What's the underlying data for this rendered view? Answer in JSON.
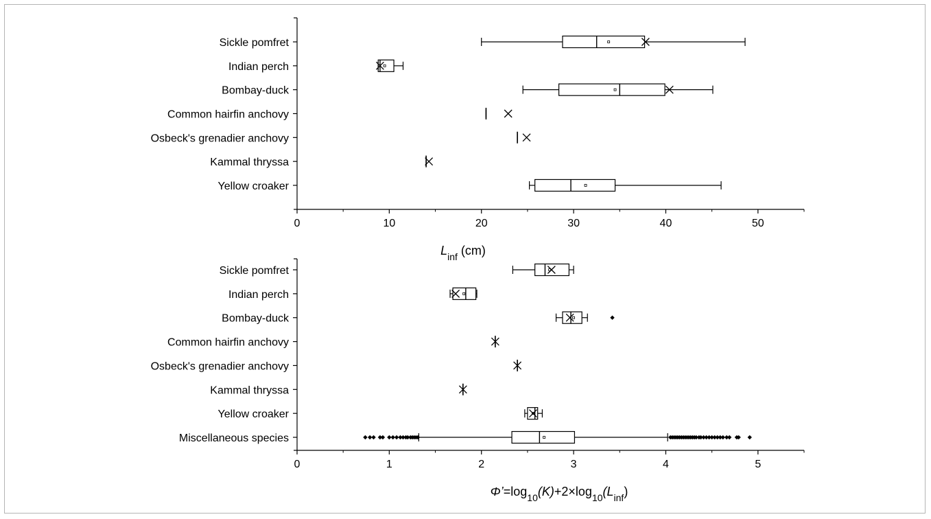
{
  "chart_data": [
    {
      "type": "box",
      "xlabel": {
        "base": "L",
        "sub": "inf",
        "tail": " (cm)"
      },
      "xlim": [
        0,
        55
      ],
      "xticks": [
        "0",
        "10",
        "20",
        "30",
        "40",
        "50"
      ],
      "xtick_values": [
        0,
        10,
        20,
        30,
        40,
        50
      ],
      "grid": false,
      "categories": [
        "Sickle pomfret",
        "Indian perch",
        "Bombay-duck",
        "Common hairfin anchovy",
        "Osbeck's grenadier anchovy",
        "Kammal thryssa",
        "Yellow croaker"
      ],
      "boxes": [
        {
          "whisker_low": 20.0,
          "q1": 28.8,
          "median": 32.5,
          "q3": 37.7,
          "whisker_high": 48.6,
          "mean": 33.8,
          "cross": 37.8,
          "outliers": []
        },
        {
          "whisker_low": 8.8,
          "q1": 8.8,
          "median": 9.0,
          "q3": 10.5,
          "whisker_high": 11.5,
          "mean": 9.5,
          "cross": 9.0,
          "outliers": []
        },
        {
          "whisker_low": 24.5,
          "q1": 28.4,
          "median": 35.0,
          "q3": 39.9,
          "whisker_high": 45.1,
          "mean": 34.5,
          "cross": 40.4,
          "outliers": []
        },
        {
          "whisker_low": 20.5,
          "q1": 20.5,
          "median": 20.5,
          "q3": 20.5,
          "whisker_high": 20.5,
          "mean": 20.5,
          "cross": 22.9,
          "outliers": []
        },
        {
          "whisker_low": 23.9,
          "q1": 23.9,
          "median": 23.9,
          "q3": 23.9,
          "whisker_high": 23.9,
          "mean": 23.9,
          "cross": 24.9,
          "outliers": []
        },
        {
          "whisker_low": 14.0,
          "q1": 14.0,
          "median": 14.0,
          "q3": 14.0,
          "whisker_high": 14.0,
          "mean": 14.0,
          "cross": 14.3,
          "outliers": []
        },
        {
          "whisker_low": 25.2,
          "q1": 25.8,
          "median": 29.7,
          "q3": 34.5,
          "whisker_high": 46.0,
          "mean": 31.3,
          "cross": null,
          "outliers": []
        }
      ]
    },
    {
      "type": "box",
      "xlabel": {
        "phi": "Φ’",
        "eq": "=log",
        "sub1": "10",
        "k": "(K)",
        "plus": "+2×log",
        "sub2": "10",
        "lopen": "(L",
        "sub3": "inf",
        "rclose": ")"
      },
      "xlim": [
        0,
        5.5
      ],
      "xticks": [
        "0",
        "1",
        "2",
        "3",
        "4",
        "5"
      ],
      "xtick_values": [
        0,
        1,
        2,
        3,
        4,
        5
      ],
      "grid": false,
      "categories": [
        "Sickle pomfret",
        "Indian perch",
        "Bombay-duck",
        "Common hairfin anchovy",
        "Osbeck's grenadier anchovy",
        "Kammal thryssa",
        "Yellow croaker",
        "Miscellaneous species"
      ],
      "boxes": [
        {
          "whisker_low": 2.34,
          "q1": 2.58,
          "median": 2.69,
          "q3": 2.95,
          "whisker_high": 3.0,
          "mean": 2.74,
          "cross": 2.76,
          "outliers": []
        },
        {
          "whisker_low": 1.66,
          "q1": 1.69,
          "median": 1.83,
          "q3": 1.94,
          "whisker_high": 1.95,
          "mean": 1.81,
          "cross": 1.72,
          "outliers": []
        },
        {
          "whisker_low": 2.81,
          "q1": 2.88,
          "median": 2.97,
          "q3": 3.09,
          "whisker_high": 3.15,
          "mean": 3.0,
          "cross": 2.96,
          "outliers": [
            3.42
          ]
        },
        {
          "whisker_low": 2.15,
          "q1": 2.15,
          "median": 2.15,
          "q3": 2.15,
          "whisker_high": 2.15,
          "mean": 2.15,
          "cross": 2.15,
          "outliers": []
        },
        {
          "whisker_low": 2.39,
          "q1": 2.39,
          "median": 2.39,
          "q3": 2.39,
          "whisker_high": 2.39,
          "mean": 2.39,
          "cross": 2.39,
          "outliers": []
        },
        {
          "whisker_low": 1.8,
          "q1": 1.8,
          "median": 1.8,
          "q3": 1.8,
          "whisker_high": 1.8,
          "mean": 1.8,
          "cross": 1.8,
          "outliers": []
        },
        {
          "whisker_low": 2.47,
          "q1": 2.5,
          "median": 2.58,
          "q3": 2.61,
          "whisker_high": 2.66,
          "mean": 2.56,
          "cross": 2.56,
          "outliers": []
        },
        {
          "whisker_low": 1.32,
          "q1": 2.33,
          "median": 2.63,
          "q3": 3.01,
          "whisker_high": 4.02,
          "mean": 2.68,
          "cross": null,
          "outliers": [
            0.74,
            0.79,
            0.83,
            0.9,
            0.93,
            1.0,
            1.04,
            1.08,
            1.12,
            1.15,
            1.18,
            1.2,
            1.23,
            1.25,
            1.27,
            1.29,
            1.31,
            4.05,
            4.07,
            4.09,
            4.11,
            4.13,
            4.15,
            4.17,
            4.19,
            4.21,
            4.23,
            4.25,
            4.27,
            4.29,
            4.31,
            4.33,
            4.36,
            4.38,
            4.41,
            4.44,
            4.47,
            4.5,
            4.53,
            4.56,
            4.59,
            4.62,
            4.66,
            4.69,
            4.77,
            4.79,
            4.91
          ]
        }
      ]
    }
  ]
}
